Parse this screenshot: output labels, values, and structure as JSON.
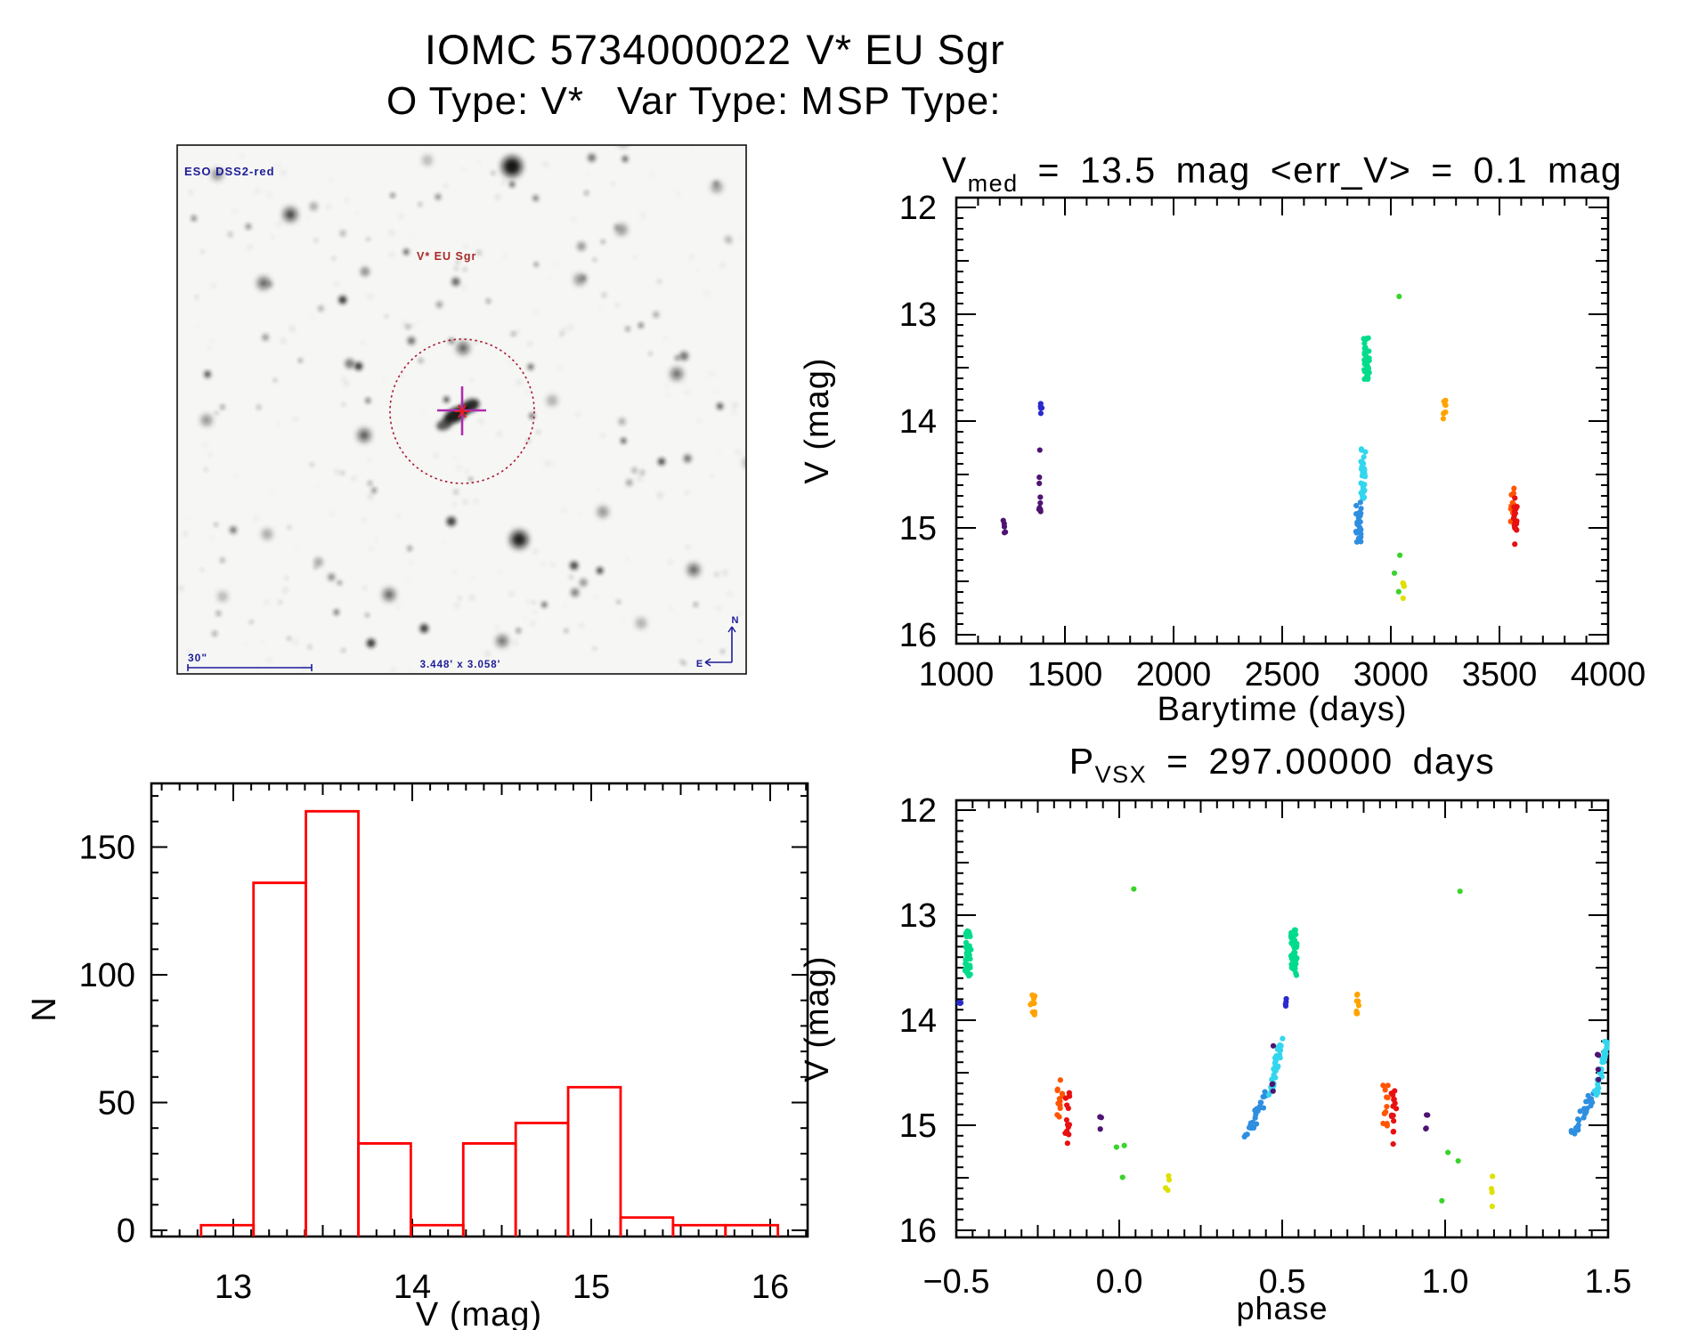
{
  "header": {
    "line1_left": "IOMC 5734000022",
    "line1_right": "V* EU Sgr",
    "line2_parts": [
      "O Type: V*",
      "Var Type: M",
      "SP Type:"
    ]
  },
  "starfield": {
    "survey_label": "ESO DSS2-red",
    "target_label": "V* EU Sgr",
    "scale_label": "30\"",
    "fov_label": "3.448' x 3.058'",
    "compass_north": "N",
    "compass_east": "E",
    "circle_color": "#a81830",
    "cross_color": "#b02cb0"
  },
  "palette": {
    "purple": "#4E1372",
    "blue2": "#2A2ACD",
    "blue": "#2E8FE0",
    "cyan": "#33D6EE",
    "green": "#00DC8C",
    "lime": "#3BD32B",
    "yellow": "#DEE000",
    "orange": "#FFA300",
    "orangered": "#FF5500",
    "red": "#E81010"
  },
  "chart_data": [
    {
      "id": "lightcurve",
      "type": "scatter",
      "title_var": "V",
      "title_sub": "med",
      "title_rest": " = 13.5 mag <err_V> = 0.1 mag",
      "xlabel": "Barytime (days)",
      "ylabel": "V (mag)",
      "xlim": [
        1000,
        4000
      ],
      "ylim": [
        16.1,
        11.9
      ],
      "xticks": [
        "1000",
        "1500",
        "2000",
        "2500",
        "3000",
        "3500",
        "4000"
      ],
      "xtick_vals": [
        1000,
        1500,
        2000,
        2500,
        3000,
        3500,
        4000
      ],
      "yticks": [
        "12",
        "13",
        "14",
        "15",
        "16"
      ],
      "ytick_vals": [
        12,
        13,
        14,
        15,
        16
      ],
      "clusters": [
        {
          "color": "purple",
          "t": 1221,
          "dt": 5,
          "vmin": 14.92,
          "vmax": 15.09,
          "n": 5
        },
        {
          "color": "blue2",
          "t": 1391,
          "dt": 5,
          "vmin": 13.82,
          "vmax": 13.93,
          "n": 5
        },
        {
          "color": "purple",
          "t": 1386,
          "dt": 6,
          "vmin": 14.47,
          "vmax": 14.86,
          "n": 8
        },
        {
          "color": "purple",
          "t": 1383,
          "dt": 2,
          "vmin": 14.27,
          "vmax": 14.3,
          "n": 1
        },
        {
          "color": "green",
          "t": 2888,
          "dt": 13,
          "vmin": 13.22,
          "vmax": 13.61,
          "n": 48
        },
        {
          "color": "cyan",
          "t": 2872,
          "dt": 11,
          "vmin": 14.26,
          "vmax": 14.73,
          "n": 34
        },
        {
          "color": "blue",
          "t": 2851,
          "dt": 13,
          "vmin": 14.76,
          "vmax": 15.14,
          "n": 28
        },
        {
          "color": "lime",
          "t": 3040,
          "dt": 2,
          "vmin": 12.82,
          "vmax": 12.85,
          "n": 1
        },
        {
          "color": "lime",
          "t": 3028,
          "dt": 14,
          "vmin": 15.21,
          "vmax": 15.77,
          "n": 3
        },
        {
          "color": "yellow",
          "t": 3062,
          "dt": 8,
          "vmin": 15.28,
          "vmax": 15.77,
          "n": 4
        },
        {
          "color": "orange",
          "t": 3247,
          "dt": 7,
          "vmin": 13.8,
          "vmax": 13.98,
          "n": 9
        },
        {
          "color": "orangered",
          "t": 3560,
          "dt": 9,
          "vmin": 14.62,
          "vmax": 14.96,
          "n": 10
        },
        {
          "color": "red",
          "t": 3573,
          "dt": 9,
          "vmin": 14.7,
          "vmax": 15.07,
          "n": 20
        },
        {
          "color": "red",
          "t": 3570,
          "dt": 2,
          "vmin": 15.15,
          "vmax": 15.18,
          "n": 1
        }
      ]
    },
    {
      "id": "histogram",
      "type": "bar",
      "xlabel": "V (mag)",
      "ylabel": "N",
      "bin_start": 12.82,
      "bin_width": 0.293,
      "counts": [
        2,
        136,
        164,
        34,
        2,
        34,
        42,
        56,
        5,
        2,
        2
      ],
      "xticks": [
        "13",
        "14",
        "15",
        "16"
      ],
      "xtick_vals": [
        13,
        14,
        15,
        16
      ],
      "yticks": [
        "0",
        "50",
        "100",
        "150"
      ],
      "ytick_vals": [
        0,
        50,
        100,
        150
      ],
      "bar_color": "#ff0000"
    },
    {
      "id": "phase_curve",
      "type": "scatter",
      "title_var": "P",
      "title_sub": "VSX",
      "title_rest": " = 297.00000 days",
      "xlabel": "phase",
      "ylabel": "V (mag)",
      "xlim": [
        -0.5,
        1.5
      ],
      "ylim": [
        16.1,
        11.9
      ],
      "xticks": [
        "−0.5",
        "0.0",
        "0.5",
        "1.0",
        "1.5"
      ],
      "xtick_vals": [
        -0.5,
        0.0,
        0.5,
        1.0,
        1.5
      ],
      "yticks": [
        "12",
        "13",
        "14",
        "15",
        "16"
      ],
      "ytick_vals": [
        12,
        13,
        14,
        15,
        16
      ],
      "period_days": 297.0,
      "clusters": [
        {
          "color": "blue2",
          "p": -0.489,
          "dp": 0.004,
          "vmin": 13.78,
          "vmax": 13.88,
          "n": 4
        },
        {
          "color": "green",
          "p": -0.464,
          "dp": 0.009,
          "vmin": 13.14,
          "vmax": 13.58,
          "n": 48
        },
        {
          "color": "orange",
          "p": -0.266,
          "dp": 0.007,
          "vmin": 13.74,
          "vmax": 13.95,
          "n": 9
        },
        {
          "color": "orangered",
          "p": -0.183,
          "dp": 0.009,
          "vmin": 14.56,
          "vmax": 15.02,
          "n": 12
        },
        {
          "color": "red",
          "p": -0.157,
          "dp": 0.009,
          "vmin": 14.67,
          "vmax": 15.1,
          "n": 14
        },
        {
          "color": "red",
          "p": -0.16,
          "dp": 0.002,
          "vmin": 15.15,
          "vmax": 15.18,
          "n": 1
        },
        {
          "color": "purple",
          "p": -0.056,
          "dp": 0.004,
          "vmin": 14.9,
          "vmax": 15.06,
          "n": 4
        },
        {
          "color": "lime",
          "p": 0.017,
          "dp": 0.028,
          "vmin": 15.19,
          "vmax": 15.8,
          "n": 3
        },
        {
          "color": "lime",
          "p": 0.046,
          "dp": 0.002,
          "vmin": 12.75,
          "vmax": 12.78,
          "n": 1
        },
        {
          "color": "yellow",
          "p": 0.146,
          "dp": 0.01,
          "vmin": 15.28,
          "vmax": 15.79,
          "n": 4
        },
        {
          "color": "blue",
          "p": 0.393,
          "span": 0.06,
          "dp": 0.01,
          "vmin": 14.7,
          "vmax": 15.1,
          "n": 24,
          "diag": true
        },
        {
          "color": "cyan",
          "p": 0.464,
          "span": 0.034,
          "dp": 0.007,
          "vmin": 14.2,
          "vmax": 14.7,
          "n": 30,
          "diag": true
        },
        {
          "color": "purple",
          "p": 0.47,
          "dp": 0.004,
          "vmin": 14.24,
          "vmax": 14.8,
          "n": 4
        }
      ]
    }
  ]
}
